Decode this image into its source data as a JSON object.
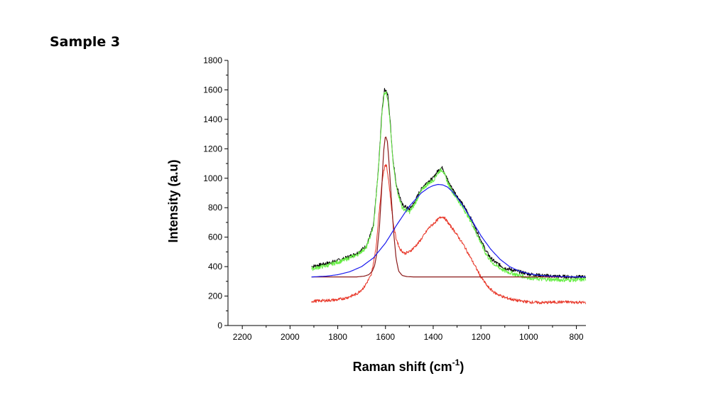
{
  "slide": {
    "title": "Sample 3"
  },
  "chart_data": {
    "type": "line",
    "title": "",
    "xlabel": "Raman shift (cm",
    "xlabel_sup": "-1",
    "xlabel_close": ")",
    "ylabel": "Intensity (a.u)",
    "xlim": [
      2260,
      760
    ],
    "x_reversed": true,
    "ylim": [
      0,
      1800
    ],
    "xticks": [
      2200,
      2000,
      1800,
      1600,
      1400,
      1200,
      1000,
      800
    ],
    "yticks": [
      0,
      200,
      400,
      600,
      800,
      1000,
      1200,
      1400,
      1600,
      1800
    ],
    "grid": false,
    "legend": "none",
    "series": [
      {
        "color": "#000000",
        "noise": 12,
        "x": [
          1910,
          1850,
          1780,
          1720,
          1680,
          1650,
          1630,
          1615,
          1605,
          1598,
          1590,
          1580,
          1570,
          1555,
          1530,
          1500,
          1480,
          1460,
          1440,
          1420,
          1400,
          1385,
          1370,
          1360,
          1350,
          1335,
          1320,
          1300,
          1280,
          1260,
          1240,
          1220,
          1200,
          1180,
          1160,
          1140,
          1100,
          1050,
          1000,
          950,
          900,
          850,
          800,
          760
        ],
        "y": [
          400,
          420,
          450,
          490,
          540,
          680,
          1050,
          1450,
          1600,
          1600,
          1560,
          1380,
          1150,
          960,
          820,
          790,
          830,
          900,
          950,
          980,
          1000,
          1040,
          1070,
          1070,
          1030,
          970,
          930,
          880,
          830,
          780,
          720,
          650,
          580,
          510,
          460,
          430,
          390,
          370,
          350,
          340,
          335,
          332,
          330,
          330
        ]
      },
      {
        "color": "#66ee44",
        "noise": 14,
        "x": [
          1910,
          1850,
          1780,
          1720,
          1680,
          1650,
          1630,
          1615,
          1605,
          1598,
          1590,
          1580,
          1570,
          1555,
          1530,
          1500,
          1480,
          1460,
          1440,
          1420,
          1400,
          1385,
          1370,
          1360,
          1350,
          1335,
          1320,
          1300,
          1280,
          1260,
          1240,
          1220,
          1200,
          1180,
          1160,
          1140,
          1100,
          1050,
          1000,
          950,
          900,
          850,
          800,
          760
        ],
        "y": [
          385,
          405,
          440,
          480,
          530,
          670,
          1040,
          1430,
          1580,
          1585,
          1540,
          1360,
          1130,
          940,
          800,
          770,
          815,
          885,
          935,
          965,
          985,
          1025,
          1055,
          1055,
          1015,
          955,
          910,
          860,
          810,
          760,
          700,
          630,
          560,
          490,
          440,
          410,
          370,
          345,
          325,
          315,
          312,
          310,
          310,
          312
        ]
      },
      {
        "color": "#e8382a",
        "noise": 10,
        "x": [
          1910,
          1850,
          1800,
          1760,
          1720,
          1690,
          1660,
          1640,
          1625,
          1612,
          1602,
          1595,
          1588,
          1578,
          1568,
          1555,
          1540,
          1520,
          1500,
          1480,
          1460,
          1440,
          1420,
          1400,
          1380,
          1365,
          1355,
          1345,
          1330,
          1310,
          1290,
          1270,
          1250,
          1230,
          1200,
          1170,
          1140,
          1100,
          1050,
          1000,
          950,
          900,
          850,
          800,
          760
        ],
        "y": [
          165,
          170,
          175,
          190,
          215,
          260,
          340,
          520,
          800,
          1010,
          1090,
          1080,
          1000,
          850,
          700,
          590,
          520,
          490,
          500,
          530,
          565,
          610,
          660,
          690,
          720,
          740,
          735,
          715,
          680,
          640,
          590,
          540,
          480,
          420,
          330,
          260,
          220,
          190,
          170,
          160,
          155,
          158,
          160,
          158,
          155
        ]
      },
      {
        "color": "#8b1a1a",
        "noise": 0,
        "x": [
          1910,
          1800,
          1720,
          1690,
          1670,
          1655,
          1645,
          1635,
          1625,
          1615,
          1608,
          1600,
          1592,
          1585,
          1575,
          1565,
          1555,
          1545,
          1530,
          1510,
          1480,
          1400,
          1300,
          1200,
          1100,
          1000,
          900,
          800,
          760
        ],
        "y": [
          330,
          330,
          330,
          335,
          345,
          370,
          410,
          500,
          680,
          950,
          1180,
          1290,
          1250,
          1100,
          850,
          620,
          450,
          370,
          340,
          332,
          330,
          330,
          330,
          330,
          330,
          330,
          330,
          330,
          330
        ]
      },
      {
        "color": "#1a1aee",
        "noise": 0,
        "x": [
          1910,
          1850,
          1800,
          1750,
          1700,
          1650,
          1600,
          1550,
          1500,
          1450,
          1420,
          1400,
          1380,
          1360,
          1340,
          1320,
          1300,
          1270,
          1240,
          1200,
          1160,
          1120,
          1080,
          1040,
          1000,
          960,
          920,
          880,
          840,
          800,
          760
        ],
        "y": [
          330,
          335,
          345,
          365,
          400,
          460,
          560,
          690,
          810,
          900,
          935,
          950,
          958,
          955,
          940,
          910,
          870,
          800,
          720,
          610,
          520,
          450,
          400,
          370,
          352,
          342,
          336,
          333,
          331,
          330,
          330
        ]
      }
    ]
  }
}
